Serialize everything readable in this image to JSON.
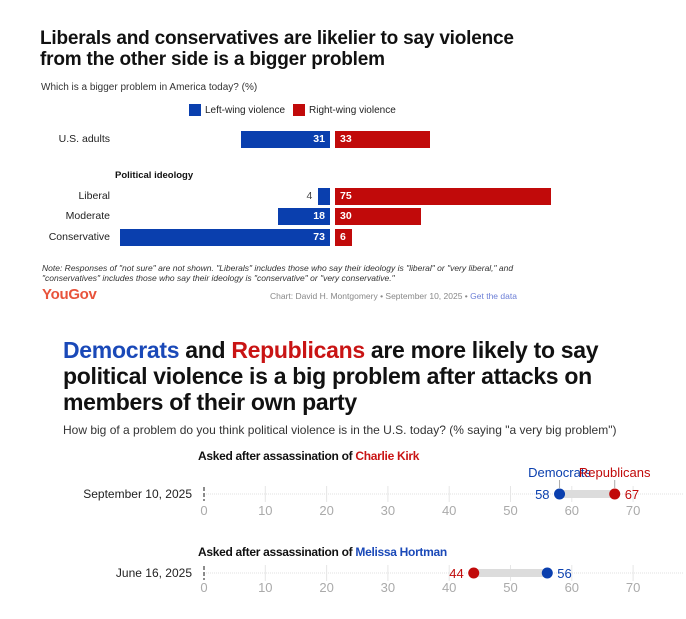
{
  "chart_data": [
    {
      "type": "bar",
      "orientation": "horizontal-diverging",
      "title": "Liberals and conservatives are likelier to say violence from the other side is a bigger problem",
      "subtitle": "Which is a bigger problem in America today? (%)",
      "legend": {
        "placement": "top-center",
        "entries": [
          {
            "name": "Left-wing violence",
            "color": "#0a3fae"
          },
          {
            "name": "Right-wing violence",
            "color": "#c10a0a"
          }
        ]
      },
      "group_label": "Political ideology",
      "categories": [
        "U.S. adults",
        "Liberal",
        "Moderate",
        "Conservative"
      ],
      "series": [
        {
          "name": "Left-wing violence",
          "values": [
            31,
            4,
            18,
            73
          ]
        },
        {
          "name": "Right-wing violence",
          "values": [
            33,
            75,
            30,
            6
          ]
        }
      ],
      "note": "Note: Responses of \"not sure\" are not shown. \"Liberals\" includes those who say their ideology is \"liberal\" or \"very liberal,\" and \"conservatives\" includes those who say their ideology is \"conservative\" or \"very conservative.\"",
      "brand": "YouGov",
      "credit": "Chart: David H. Montgomery • September 10, 2025 • ",
      "credit_link": "Get the data"
    },
    {
      "type": "scatter",
      "subtype": "dumbbell",
      "title_parts": [
        {
          "text": "Democrats",
          "color": "#1a49b8"
        },
        {
          "text": " and ",
          "color": "#111111"
        },
        {
          "text": "Republicans",
          "color": "#c91414"
        },
        {
          "text": " are more likely to say political violence is a big problem after attacks on members of their own party",
          "color": "#111111"
        }
      ],
      "subtitle": "How big of a problem do you think political violence is in the U.S. today? (% saying \"a very big problem\")",
      "xlim": [
        0,
        75
      ],
      "xticks": [
        0,
        10,
        20,
        30,
        40,
        50,
        60,
        70
      ],
      "grid": true,
      "panels": [
        {
          "heading_prefix": "Asked after assassination of ",
          "heading_name": "Charlie Kirk",
          "heading_name_color": "#c91414",
          "date": "September 10, 2025",
          "points": [
            {
              "name": "Democrats",
              "value": 58,
              "color": "#0a3fae",
              "label_above": "Democrats"
            },
            {
              "name": "Republicans",
              "value": 67,
              "color": "#c10a0a",
              "label_above": "Republicans"
            }
          ]
        },
        {
          "heading_prefix": "Asked after assassination of ",
          "heading_name": "Melissa Hortman",
          "heading_name_color": "#1a49b8",
          "date": "June 16, 2025",
          "points": [
            {
              "name": "Republicans",
              "value": 44,
              "color": "#c10a0a"
            },
            {
              "name": "Democrats",
              "value": 56,
              "color": "#0a3fae"
            }
          ]
        }
      ]
    }
  ]
}
